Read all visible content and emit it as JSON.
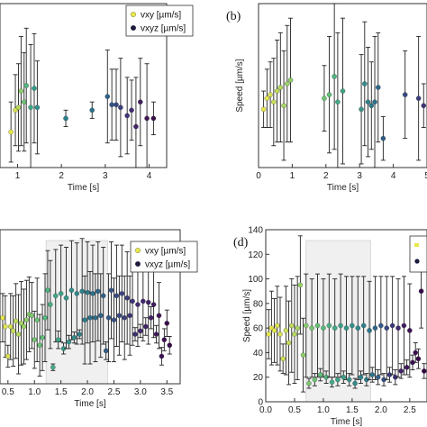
{
  "chart_data": [
    {
      "type": "scatter",
      "panel_label": "",
      "xlabel": "Time [s]",
      "ylabel": "",
      "xlim": [
        0.6,
        4.4
      ],
      "ylim": [
        0,
        60
      ],
      "xticks": [
        1,
        2,
        3,
        4
      ],
      "yticks": [],
      "legend": {
        "position": "top-right",
        "entries": [
          {
            "label": "vxy [µm/s]",
            "color": "#e8e84a"
          },
          {
            "label": "vxyz [µm/s]",
            "color": "#1a1a40"
          }
        ]
      },
      "points": [
        {
          "x": 0.85,
          "y": 13,
          "e": 11,
          "c": "#e8e84a"
        },
        {
          "x": 0.95,
          "y": 21,
          "e": 13,
          "c": "#d6e052"
        },
        {
          "x": 1.02,
          "y": 22,
          "e": 16,
          "c": "#b8d85a"
        },
        {
          "x": 1.08,
          "y": 28,
          "e": 20,
          "c": "#8fcf6a"
        },
        {
          "x": 1.15,
          "y": 24,
          "e": 18,
          "c": "#6ec474"
        },
        {
          "x": 1.2,
          "y": 30,
          "e": 21,
          "c": "#55b87e"
        },
        {
          "x": 1.3,
          "y": 22,
          "e": 23,
          "c": "#3fa886"
        },
        {
          "x": 1.38,
          "y": 29,
          "e": 20,
          "c": "#349b8a"
        },
        {
          "x": 1.45,
          "y": 22,
          "e": 17,
          "c": "#2f8f8c"
        },
        {
          "x": 2.1,
          "y": 18,
          "e": 3,
          "c": "#2a7e8d"
        },
        {
          "x": 2.7,
          "y": 21,
          "e": 3,
          "c": "#2a708c"
        },
        {
          "x": 3.05,
          "y": 26,
          "e": 17,
          "c": "#2d628a"
        },
        {
          "x": 3.15,
          "y": 23,
          "e": 13,
          "c": "#325587"
        },
        {
          "x": 3.25,
          "y": 23,
          "e": 13,
          "c": "#374a83"
        },
        {
          "x": 3.35,
          "y": 22,
          "e": 18,
          "c": "#3b3f7e"
        },
        {
          "x": 3.5,
          "y": 19,
          "e": 14,
          "c": "#3e3577"
        },
        {
          "x": 3.6,
          "y": 21,
          "e": 11,
          "c": "#402c6f"
        },
        {
          "x": 3.7,
          "y": 15,
          "e": 18,
          "c": "#412465"
        },
        {
          "x": 3.8,
          "y": 24,
          "e": 16,
          "c": "#411d5c"
        },
        {
          "x": 3.95,
          "y": 18,
          "e": 20,
          "c": "#3f1653"
        },
        {
          "x": 4.1,
          "y": 18,
          "e": 6,
          "c": "#3b0f4a"
        }
      ]
    },
    {
      "type": "scatter",
      "panel_label": "(b)",
      "xlabel": "Time [s]",
      "ylabel": "Speed [µm/s]",
      "xlim": [
        0,
        5
      ],
      "ylim": [
        0,
        45
      ],
      "xticks": [
        0,
        1,
        2,
        3,
        4,
        5
      ],
      "yticks": [],
      "points": [
        {
          "x": 0.15,
          "y": 16,
          "e": 5,
          "c": "#e8e84a"
        },
        {
          "x": 0.25,
          "y": 19,
          "e": 8,
          "c": "#e2e44e"
        },
        {
          "x": 0.35,
          "y": 20,
          "e": 9,
          "c": "#d6e052"
        },
        {
          "x": 0.45,
          "y": 18,
          "e": 12,
          "c": "#cade56"
        },
        {
          "x": 0.55,
          "y": 21,
          "e": 14,
          "c": "#bedb5a"
        },
        {
          "x": 0.65,
          "y": 22,
          "e": 15,
          "c": "#b2d75e"
        },
        {
          "x": 0.75,
          "y": 17,
          "e": 15,
          "c": "#a6d462"
        },
        {
          "x": 0.85,
          "y": 23,
          "e": 16,
          "c": "#9ad166"
        },
        {
          "x": 0.95,
          "y": 24,
          "e": 17,
          "c": "#8ecd6a"
        },
        {
          "x": 1.95,
          "y": 19,
          "e": 9,
          "c": "#6ec474"
        },
        {
          "x": 2.1,
          "y": 20,
          "e": 16,
          "c": "#5fbd79"
        },
        {
          "x": 2.25,
          "y": 25,
          "e": 20,
          "c": "#4fb480"
        },
        {
          "x": 2.35,
          "y": 18,
          "e": 19,
          "c": "#45ab84"
        },
        {
          "x": 2.5,
          "y": 21,
          "e": 20,
          "c": "#3fa386"
        },
        {
          "x": 3.05,
          "y": 16,
          "e": 15,
          "c": "#389588"
        },
        {
          "x": 3.15,
          "y": 23,
          "e": 17,
          "c": "#348b8a"
        },
        {
          "x": 3.25,
          "y": 18,
          "e": 15,
          "c": "#30818b"
        },
        {
          "x": 3.35,
          "y": 17,
          "e": 12,
          "c": "#2d788b"
        },
        {
          "x": 3.45,
          "y": 18,
          "e": 18,
          "c": "#2c6f8b"
        },
        {
          "x": 3.55,
          "y": 22,
          "e": 15,
          "c": "#2e668a"
        },
        {
          "x": 3.7,
          "y": 8,
          "e": 6,
          "c": "#305d88"
        },
        {
          "x": 4.35,
          "y": 20,
          "e": 12,
          "c": "#374a83"
        },
        {
          "x": 4.75,
          "y": 19,
          "e": 17,
          "c": "#3b3f7e"
        },
        {
          "x": 4.9,
          "y": 17,
          "e": 6,
          "c": "#3e3577"
        }
      ]
    },
    {
      "type": "scatter",
      "panel_label": "",
      "xlabel": "Time [s]",
      "ylabel": "",
      "xlim": [
        0.35,
        3.75
      ],
      "ylim": [
        0,
        140
      ],
      "xticks": [
        0.5,
        1.0,
        1.5,
        2.0,
        2.5,
        3.0,
        3.5
      ],
      "yticks": [],
      "shaded_region": [
        1.22,
        2.38
      ],
      "legend": {
        "position": "top-right",
        "entries": [
          {
            "label": "vxy [µm/s]",
            "color": "#e8e84a"
          },
          {
            "label": "vxyz [µm/s]",
            "color": "#1a1a40"
          }
        ]
      },
      "points": [
        {
          "x": 0.4,
          "y": 60,
          "e": 22,
          "c": "#e8e84a"
        },
        {
          "x": 0.45,
          "y": 52,
          "e": 28,
          "c": "#e2e44e"
        },
        {
          "x": 0.5,
          "y": 25,
          "e": 10,
          "c": "#dce250"
        },
        {
          "x": 0.55,
          "y": 52,
          "e": 30,
          "c": "#d6e052"
        },
        {
          "x": 0.6,
          "y": 48,
          "e": 32,
          "c": "#cade56"
        },
        {
          "x": 0.65,
          "y": 57,
          "e": 34,
          "c": "#bedb5a"
        },
        {
          "x": 0.7,
          "y": 45,
          "e": 36,
          "c": "#b2d75e"
        },
        {
          "x": 0.75,
          "y": 55,
          "e": 38,
          "c": "#a6d462"
        },
        {
          "x": 0.8,
          "y": 52,
          "e": 34,
          "c": "#9ad166"
        },
        {
          "x": 0.85,
          "y": 58,
          "e": 36,
          "c": "#8ecd6a"
        },
        {
          "x": 0.9,
          "y": 63,
          "e": 34,
          "c": "#86ca6c"
        },
        {
          "x": 0.95,
          "y": 62,
          "e": 30,
          "c": "#7ec770"
        },
        {
          "x": 1.0,
          "y": 40,
          "e": 26,
          "c": "#76c472"
        },
        {
          "x": 1.05,
          "y": 58,
          "e": 38,
          "c": "#6ec474"
        },
        {
          "x": 1.1,
          "y": 35,
          "e": 28,
          "c": "#66c076"
        },
        {
          "x": 1.15,
          "y": 42,
          "e": 30,
          "c": "#5fbd79"
        },
        {
          "x": 1.2,
          "y": 60,
          "e": 40,
          "c": "#57b97c"
        },
        {
          "x": 1.25,
          "y": 85,
          "e": 36,
          "c": "#4fb480"
        },
        {
          "x": 1.3,
          "y": 72,
          "e": 40,
          "c": "#4aaf82"
        },
        {
          "x": 1.35,
          "y": 15,
          "e": 3,
          "c": "#45ab84"
        },
        {
          "x": 1.4,
          "y": 80,
          "e": 42,
          "c": "#41a785"
        },
        {
          "x": 1.45,
          "y": 40,
          "e": 8,
          "c": "#3fa386"
        },
        {
          "x": 1.5,
          "y": 82,
          "e": 44,
          "c": "#3c9f87"
        },
        {
          "x": 1.55,
          "y": 32,
          "e": 5,
          "c": "#399b88"
        },
        {
          "x": 1.6,
          "y": 78,
          "e": 46,
          "c": "#379789"
        },
        {
          "x": 1.65,
          "y": 38,
          "e": 6,
          "c": "#35938a"
        },
        {
          "x": 1.7,
          "y": 85,
          "e": 45,
          "c": "#348f8a"
        },
        {
          "x": 1.75,
          "y": 42,
          "e": 5,
          "c": "#328b8a"
        },
        {
          "x": 1.8,
          "y": 82,
          "e": 46,
          "c": "#31878b"
        },
        {
          "x": 1.85,
          "y": 45,
          "e": 4,
          "c": "#30838b"
        },
        {
          "x": 1.9,
          "y": 84,
          "e": 48,
          "c": "#2f7f8b"
        },
        {
          "x": 1.95,
          "y": 58,
          "e": 40,
          "c": "#2e7b8b"
        },
        {
          "x": 2.0,
          "y": 83,
          "e": 46,
          "c": "#2d778b"
        },
        {
          "x": 2.05,
          "y": 60,
          "e": 42,
          "c": "#2c738b"
        },
        {
          "x": 2.1,
          "y": 82,
          "e": 44,
          "c": "#2c6f8b"
        },
        {
          "x": 2.15,
          "y": 60,
          "e": 40,
          "c": "#2d6b8a"
        },
        {
          "x": 2.2,
          "y": 84,
          "e": 45,
          "c": "#2e678a"
        },
        {
          "x": 2.25,
          "y": 62,
          "e": 38,
          "c": "#2f6389"
        },
        {
          "x": 2.3,
          "y": 80,
          "e": 44,
          "c": "#305f88"
        },
        {
          "x": 2.35,
          "y": 30,
          "e": 8,
          "c": "#325b87"
        },
        {
          "x": 2.4,
          "y": 60,
          "e": 40,
          "c": "#335787"
        },
        {
          "x": 2.45,
          "y": 85,
          "e": 44,
          "c": "#355386"
        },
        {
          "x": 2.5,
          "y": 58,
          "e": 38,
          "c": "#364f85"
        },
        {
          "x": 2.55,
          "y": 80,
          "e": 46,
          "c": "#374b84"
        },
        {
          "x": 2.6,
          "y": 62,
          "e": 36,
          "c": "#394783"
        },
        {
          "x": 2.65,
          "y": 82,
          "e": 44,
          "c": "#3a4381"
        },
        {
          "x": 2.7,
          "y": 60,
          "e": 38,
          "c": "#3b3f7e"
        },
        {
          "x": 2.75,
          "y": 78,
          "e": 42,
          "c": "#3c3b7c"
        },
        {
          "x": 2.8,
          "y": 62,
          "e": 36,
          "c": "#3d377a"
        },
        {
          "x": 2.85,
          "y": 75,
          "e": 40,
          "c": "#3e3377"
        },
        {
          "x": 2.9,
          "y": 45,
          "e": 6,
          "c": "#3f2f74"
        },
        {
          "x": 2.95,
          "y": 72,
          "e": 38,
          "c": "#402c71"
        },
        {
          "x": 3.0,
          "y": 48,
          "e": 6,
          "c": "#40296e"
        },
        {
          "x": 3.05,
          "y": 75,
          "e": 36,
          "c": "#41266b"
        },
        {
          "x": 3.1,
          "y": 52,
          "e": 8,
          "c": "#412368"
        },
        {
          "x": 3.15,
          "y": 74,
          "e": 38,
          "c": "#412065"
        },
        {
          "x": 3.2,
          "y": 60,
          "e": 10,
          "c": "#411d61"
        },
        {
          "x": 3.25,
          "y": 72,
          "e": 30,
          "c": "#411a5e"
        },
        {
          "x": 3.3,
          "y": 45,
          "e": 8,
          "c": "#40175b"
        },
        {
          "x": 3.35,
          "y": 62,
          "e": 30,
          "c": "#3f1458"
        },
        {
          "x": 3.4,
          "y": 25,
          "e": 8,
          "c": "#3e1155"
        },
        {
          "x": 3.45,
          "y": 40,
          "e": 10,
          "c": "#3c0e51"
        },
        {
          "x": 3.5,
          "y": 55,
          "e": 12,
          "c": "#3b0c4e"
        },
        {
          "x": 3.55,
          "y": 35,
          "e": 8,
          "c": "#390a4b"
        }
      ]
    },
    {
      "type": "scatter",
      "panel_label": "(d)",
      "xlabel": "Time [s]",
      "ylabel": "Speed [µm/s]",
      "xlim": [
        0,
        2.8
      ],
      "ylim": [
        0,
        140
      ],
      "xticks": [
        0.0,
        0.5,
        1.0,
        1.5,
        2.0,
        2.5
      ],
      "yticks": [
        0,
        20,
        40,
        60,
        80,
        100,
        120,
        140
      ],
      "shaded_region": [
        0.7,
        1.82
      ],
      "points": [
        {
          "x": 0.05,
          "y": 55,
          "e": 20,
          "c": "#e8e84a"
        },
        {
          "x": 0.1,
          "y": 60,
          "e": 30,
          "c": "#e6e64b"
        },
        {
          "x": 0.15,
          "y": 58,
          "e": 26,
          "c": "#e2e44e"
        },
        {
          "x": 0.2,
          "y": 62,
          "e": 32,
          "c": "#dce250"
        },
        {
          "x": 0.25,
          "y": 55,
          "e": 30,
          "c": "#d6e052"
        },
        {
          "x": 0.3,
          "y": 35,
          "e": 12,
          "c": "#d0df54"
        },
        {
          "x": 0.35,
          "y": 58,
          "e": 36,
          "c": "#cade56"
        },
        {
          "x": 0.4,
          "y": 48,
          "e": 34,
          "c": "#c4dc58"
        },
        {
          "x": 0.45,
          "y": 62,
          "e": 38,
          "c": "#bedb5a"
        },
        {
          "x": 0.5,
          "y": 55,
          "e": 40,
          "c": "#b2d75e"
        },
        {
          "x": 0.55,
          "y": 60,
          "e": 42,
          "c": "#a6d462"
        },
        {
          "x": 0.6,
          "y": 95,
          "e": 40,
          "c": "#9ad166"
        },
        {
          "x": 0.65,
          "y": 38,
          "e": 30,
          "c": "#8ecd6a"
        },
        {
          "x": 0.7,
          "y": 62,
          "e": 42,
          "c": "#86ca6c"
        },
        {
          "x": 0.75,
          "y": 15,
          "e": 4,
          "c": "#7ec770"
        },
        {
          "x": 0.8,
          "y": 60,
          "e": 40,
          "c": "#76c472"
        },
        {
          "x": 0.85,
          "y": 18,
          "e": 5,
          "c": "#6ec474"
        },
        {
          "x": 0.9,
          "y": 62,
          "e": 42,
          "c": "#66c076"
        },
        {
          "x": 0.95,
          "y": 22,
          "e": 5,
          "c": "#5fbd79"
        },
        {
          "x": 1.0,
          "y": 60,
          "e": 40,
          "c": "#57b97c"
        },
        {
          "x": 1.05,
          "y": 20,
          "e": 5,
          "c": "#4fb480"
        },
        {
          "x": 1.1,
          "y": 62,
          "e": 42,
          "c": "#4aaf82"
        },
        {
          "x": 1.15,
          "y": 16,
          "e": 4,
          "c": "#45ab84"
        },
        {
          "x": 1.2,
          "y": 60,
          "e": 40,
          "c": "#41a785"
        },
        {
          "x": 1.25,
          "y": 18,
          "e": 5,
          "c": "#3fa386"
        },
        {
          "x": 1.3,
          "y": 62,
          "e": 42,
          "c": "#3c9f87"
        },
        {
          "x": 1.35,
          "y": 20,
          "e": 5,
          "c": "#399b88"
        },
        {
          "x": 1.4,
          "y": 60,
          "e": 42,
          "c": "#379789"
        },
        {
          "x": 1.45,
          "y": 18,
          "e": 5,
          "c": "#35938a"
        },
        {
          "x": 1.5,
          "y": 62,
          "e": 40,
          "c": "#348f8a"
        },
        {
          "x": 1.55,
          "y": 15,
          "e": 4,
          "c": "#328b8a"
        },
        {
          "x": 1.6,
          "y": 60,
          "e": 42,
          "c": "#31878b"
        },
        {
          "x": 1.65,
          "y": 20,
          "e": 5,
          "c": "#30838b"
        },
        {
          "x": 1.7,
          "y": 62,
          "e": 40,
          "c": "#2f7f8b"
        },
        {
          "x": 1.75,
          "y": 18,
          "e": 5,
          "c": "#2e7b8b"
        },
        {
          "x": 1.8,
          "y": 58,
          "e": 40,
          "c": "#2d778b"
        },
        {
          "x": 1.85,
          "y": 22,
          "e": 6,
          "c": "#2c738b"
        },
        {
          "x": 1.9,
          "y": 60,
          "e": 42,
          "c": "#2e678a"
        },
        {
          "x": 1.95,
          "y": 20,
          "e": 6,
          "c": "#305f88"
        },
        {
          "x": 2.0,
          "y": 62,
          "e": 40,
          "c": "#335787"
        },
        {
          "x": 2.05,
          "y": 18,
          "e": 5,
          "c": "#364f85"
        },
        {
          "x": 2.1,
          "y": 60,
          "e": 42,
          "c": "#394783"
        },
        {
          "x": 2.15,
          "y": 22,
          "e": 6,
          "c": "#3b3f7e"
        },
        {
          "x": 2.2,
          "y": 62,
          "e": 40,
          "c": "#3d377a"
        },
        {
          "x": 2.25,
          "y": 20,
          "e": 6,
          "c": "#3f2f74"
        },
        {
          "x": 2.3,
          "y": 60,
          "e": 40,
          "c": "#40296e"
        },
        {
          "x": 2.35,
          "y": 25,
          "e": 6,
          "c": "#412368"
        },
        {
          "x": 2.4,
          "y": 62,
          "e": 40,
          "c": "#411d61"
        },
        {
          "x": 2.45,
          "y": 28,
          "e": 6,
          "c": "#40175b"
        },
        {
          "x": 2.5,
          "y": 58,
          "e": 38,
          "c": "#3e1155"
        },
        {
          "x": 2.55,
          "y": 32,
          "e": 6,
          "c": "#3c0e51"
        },
        {
          "x": 2.6,
          "y": 40,
          "e": 8,
          "c": "#3b0c4e"
        },
        {
          "x": 2.65,
          "y": 35,
          "e": 8,
          "c": "#390a4b"
        },
        {
          "x": 2.7,
          "y": 90,
          "e": 30,
          "c": "#370848"
        },
        {
          "x": 2.75,
          "y": 25,
          "e": 6,
          "c": "#350745"
        }
      ]
    }
  ]
}
